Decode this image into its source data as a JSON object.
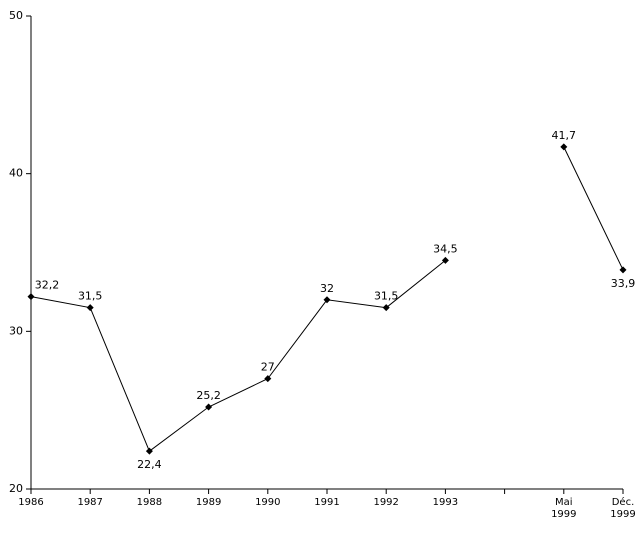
{
  "chart_data": {
    "type": "line",
    "categories": [
      "1986",
      "1987",
      "1988",
      "1989",
      "1990",
      "1991",
      "1992",
      "1993",
      null,
      "Mai 1999",
      "Déc. 1999"
    ],
    "series": [
      {
        "color": "#000000",
        "values": [
          32.2,
          31.5,
          22.4,
          25.2,
          27,
          32,
          31.5,
          34.5,
          null,
          41.7,
          33.9
        ],
        "value_labels": [
          "32,2",
          "31,5",
          "22,4",
          "25,2",
          "27",
          "32",
          "31,5",
          "34,5",
          null,
          "41,7",
          "33,9"
        ]
      }
    ],
    "ylim": [
      20,
      50
    ],
    "yticks": [
      20,
      30,
      40,
      50
    ],
    "grid": false
  }
}
